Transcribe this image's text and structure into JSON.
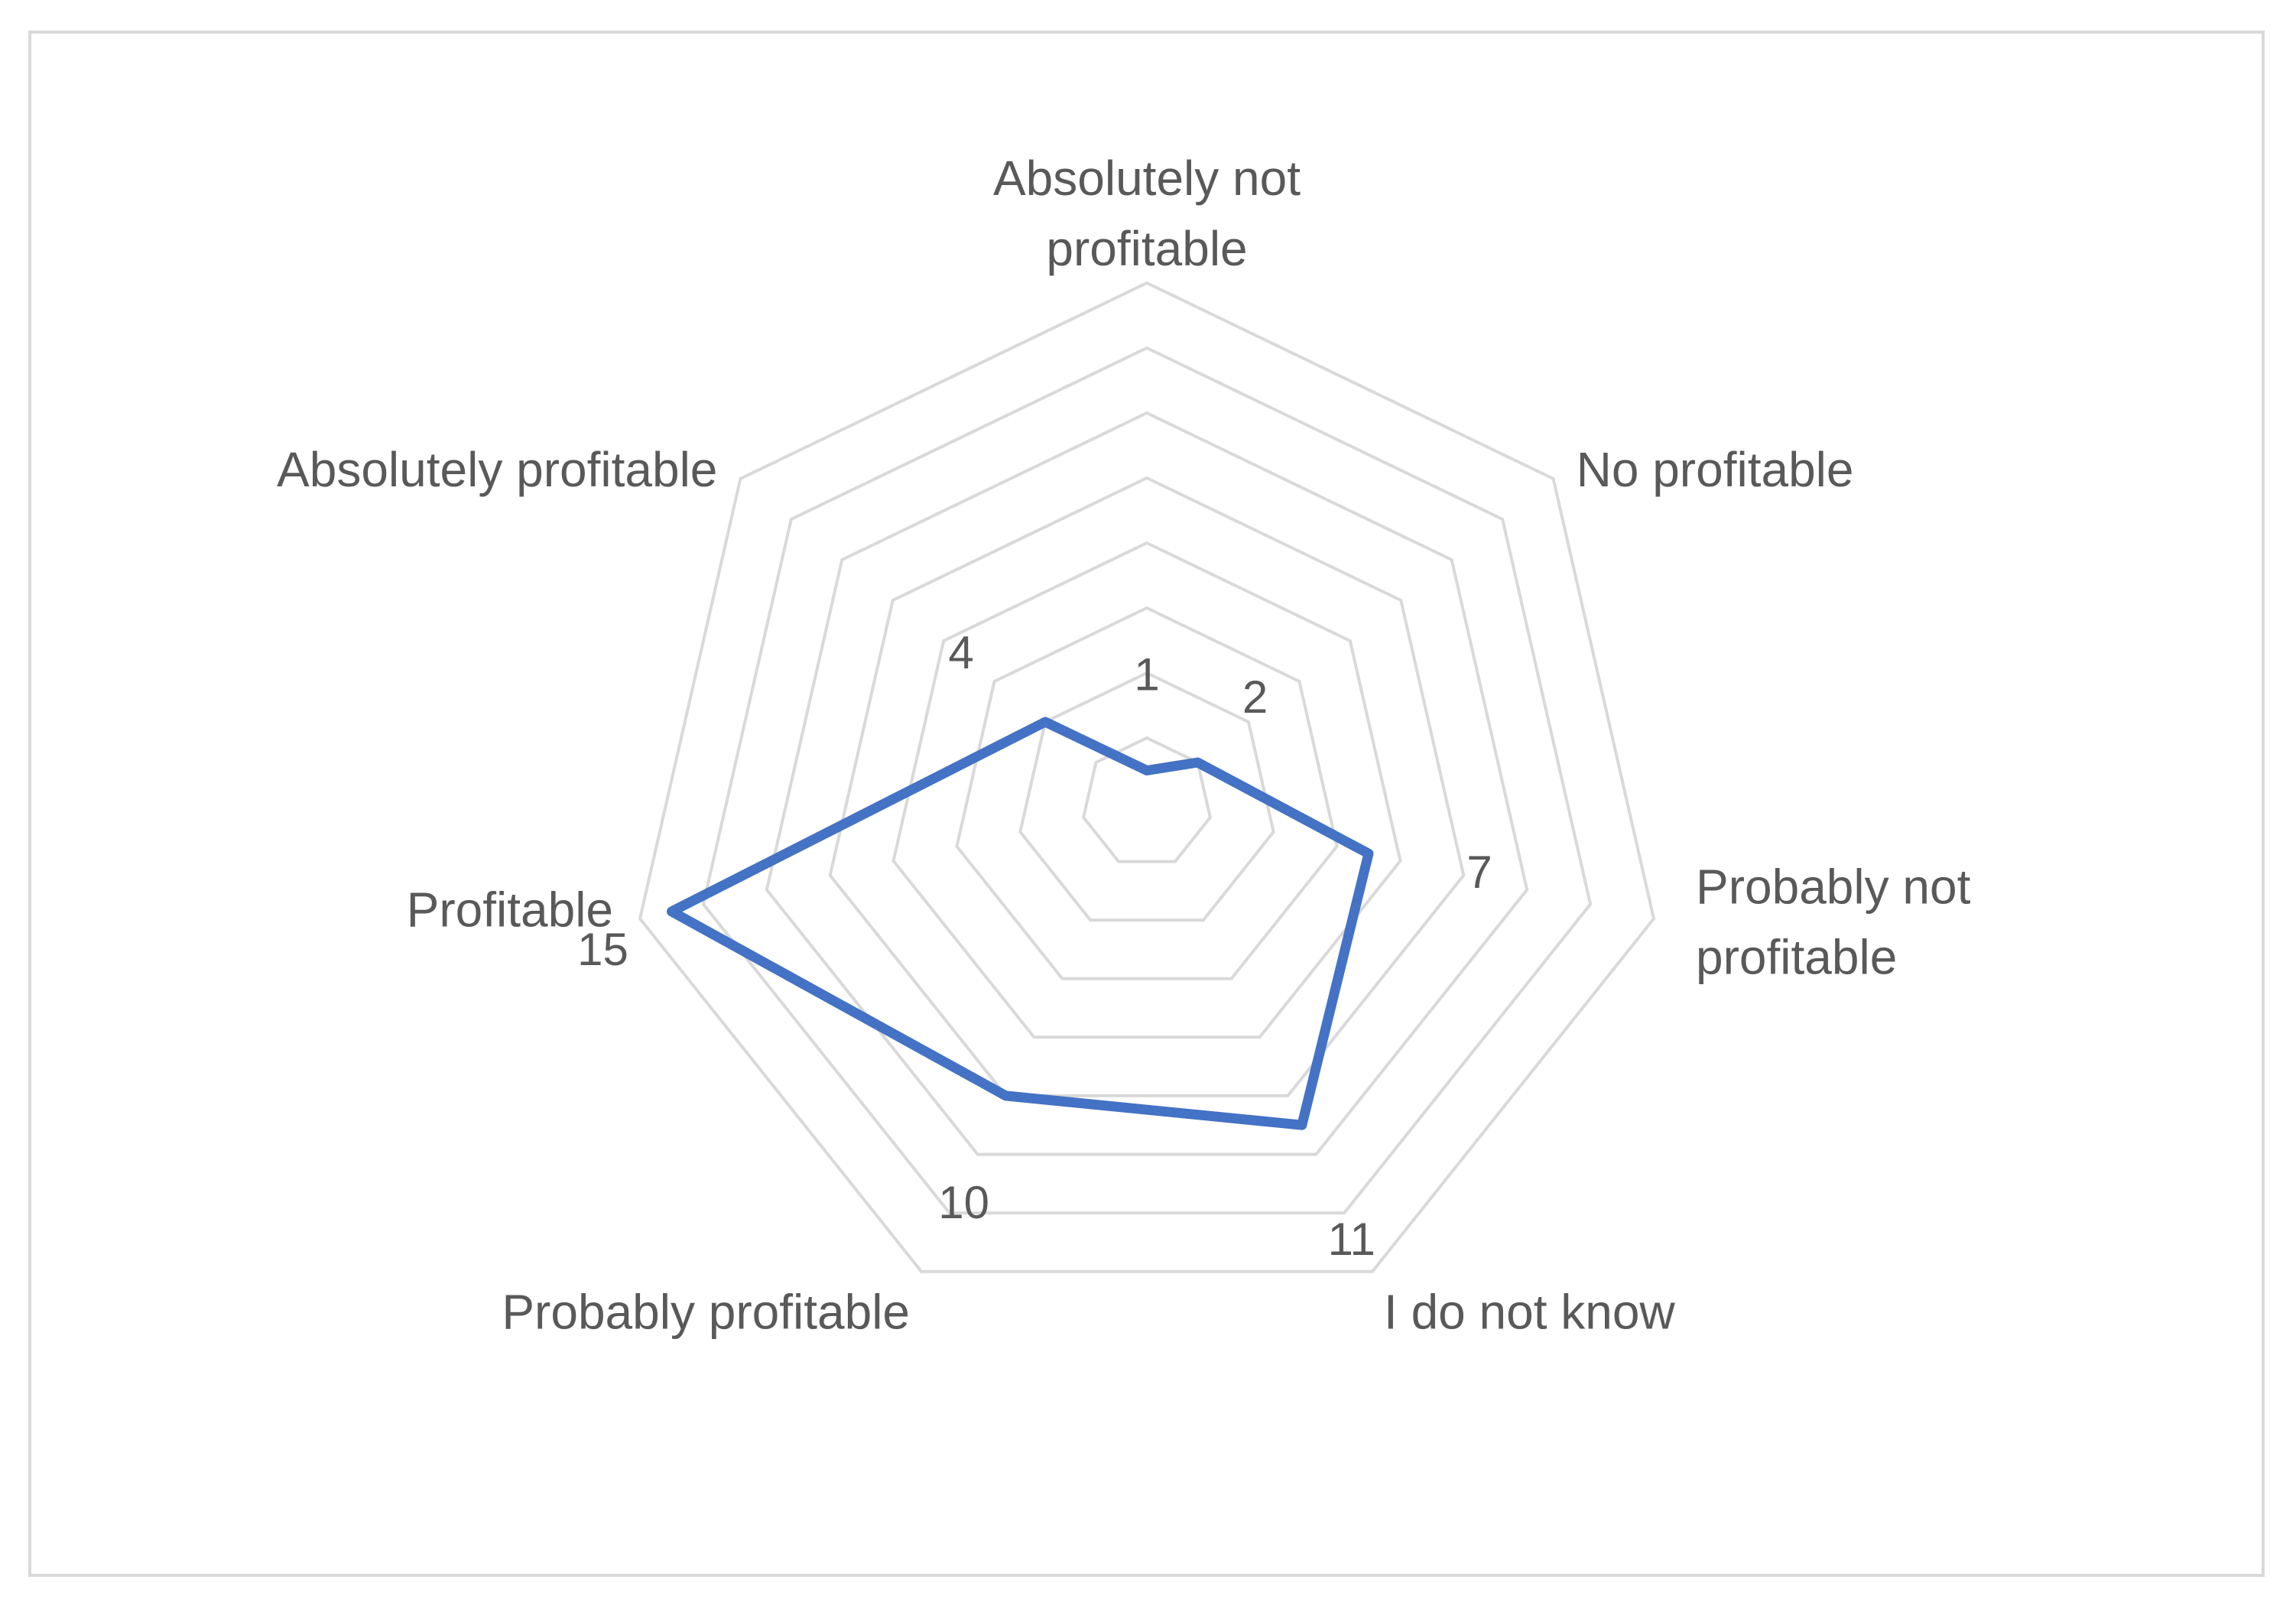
{
  "chart_data": {
    "type": "radar",
    "title": "",
    "categories": [
      "Absolutely not profitable",
      "No profitable",
      "Probably not profitable",
      "I do not know",
      "Probably  profitable",
      "Profitable",
      "Absolutely profitable"
    ],
    "category_lines": [
      [
        "Absolutely not",
        "profitable"
      ],
      [
        "No profitable"
      ],
      [
        "Probably not",
        "profitable"
      ],
      [
        "I do not know"
      ],
      [
        "Probably  profitable"
      ],
      [
        "Profitable"
      ],
      [
        "Absolutely profitable"
      ]
    ],
    "values": [
      1,
      2,
      7,
      11,
      10,
      15,
      4
    ],
    "rmin": 0,
    "rmax": 16,
    "gridlines": 8,
    "grid": true,
    "legend": "none",
    "data_labels": true,
    "colors": {
      "series": "#4472c4",
      "grid": "#d9d9d9",
      "text": "#595959",
      "frame": "#d9d9d9"
    }
  }
}
